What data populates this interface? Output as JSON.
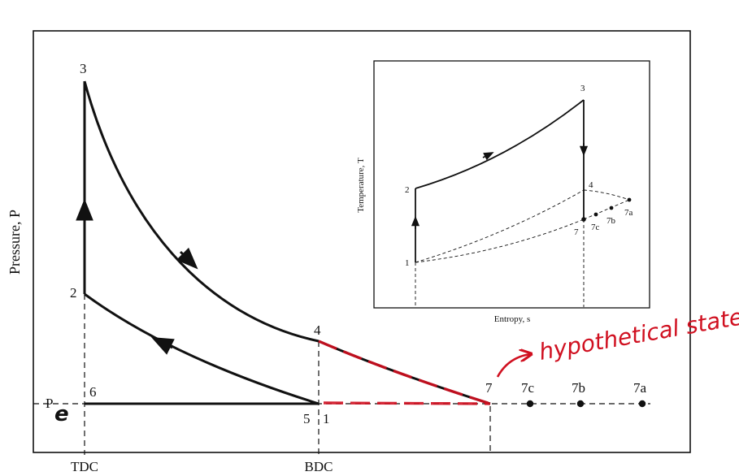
{
  "axes": {
    "ylabel": "Pressure, P",
    "xtick_tdc": "TDC",
    "xtick_bdc": "BDC",
    "pe_label": "P",
    "pe_subscript": "e"
  },
  "pv_points": {
    "p1": "1",
    "p2": "2",
    "p3": "3",
    "p4": "4",
    "p5": "5",
    "p6": "6",
    "p7": "7",
    "p7a": "7a",
    "p7b": "7b",
    "p7c": "7c"
  },
  "inset": {
    "xlabel": "Entropy, s",
    "ylabel": "Temperature, T",
    "p1": "1",
    "p2": "2",
    "p3": "3",
    "p4": "4",
    "p7": "7",
    "p7a": "7a",
    "p7b": "7b",
    "p7c": "7c"
  },
  "annotation": {
    "text": "hypothetical state",
    "color": "#d01020"
  }
}
